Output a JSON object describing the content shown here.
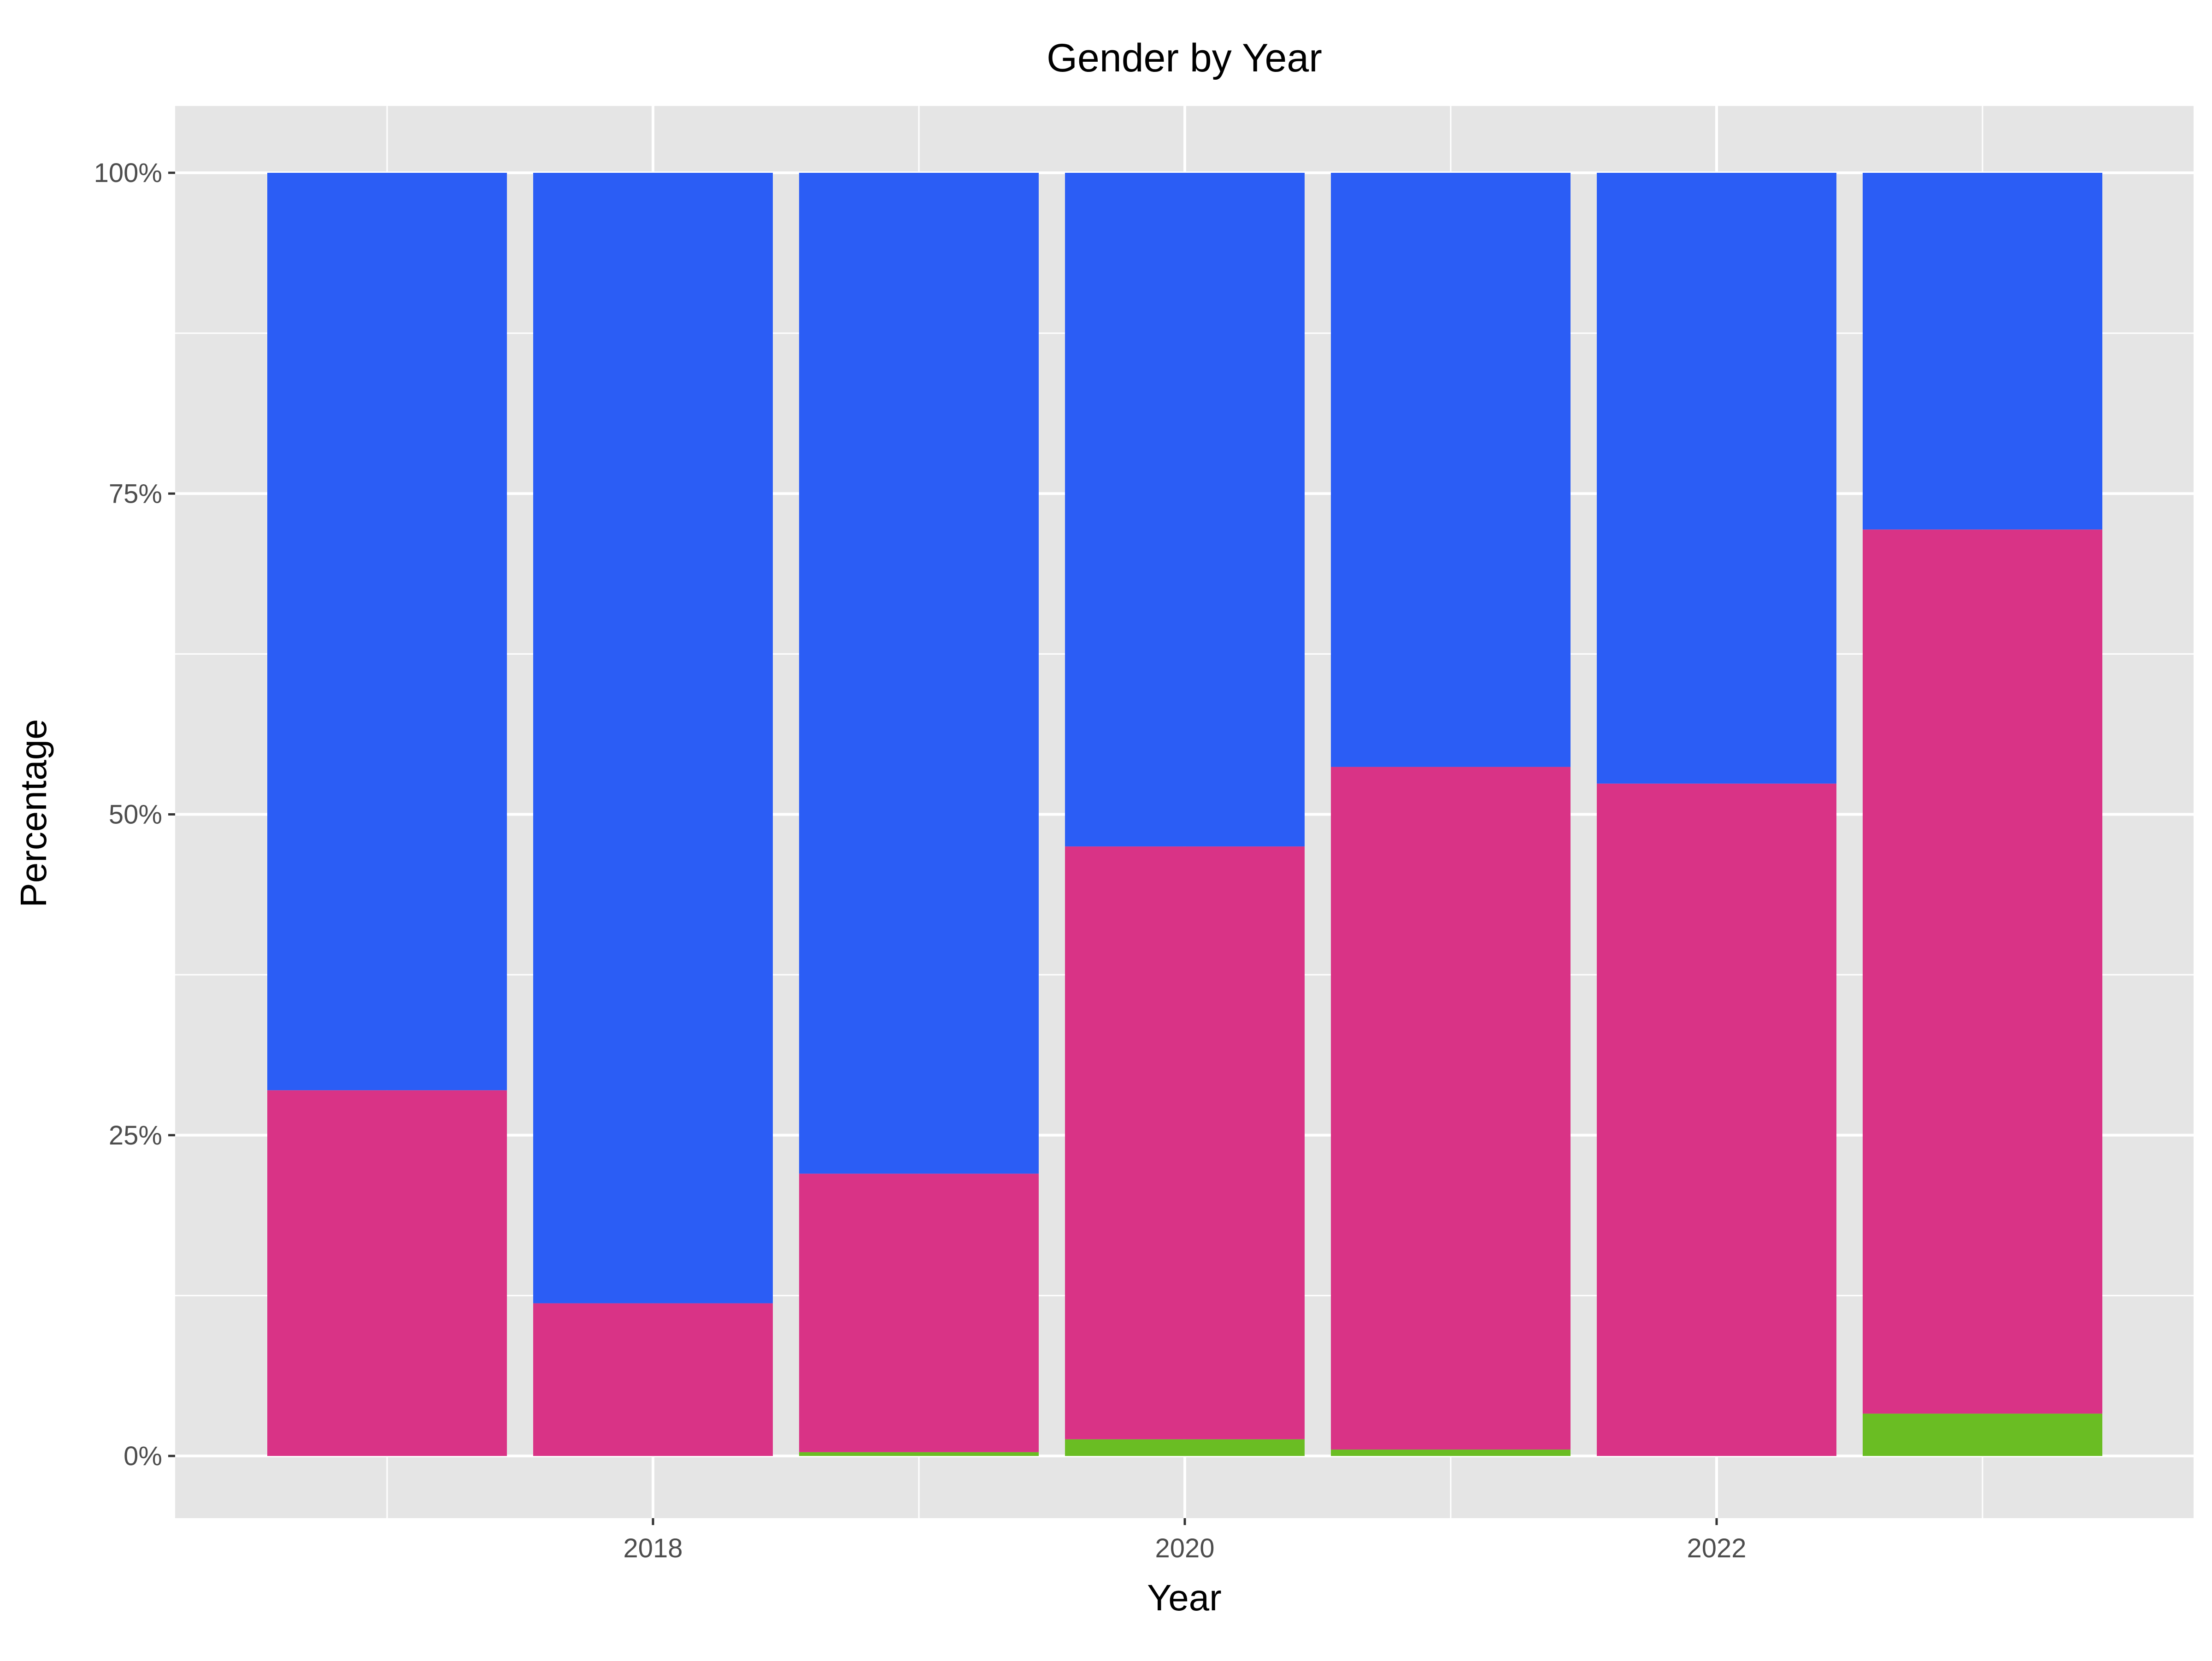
{
  "chart_data": {
    "type": "bar",
    "stacked": true,
    "percent": true,
    "title": "Gender by Year",
    "xlabel": "Year",
    "ylabel": "Percentage",
    "x": [
      2017,
      2018,
      2019,
      2020,
      2021,
      2022,
      2023
    ],
    "x_ticks": [
      "2018",
      "2020",
      "2022"
    ],
    "x_tick_values": [
      2018,
      2020,
      2022
    ],
    "ylim": [
      0,
      100
    ],
    "y_ticks": [
      "0%",
      "25%",
      "50%",
      "75%",
      "100%"
    ],
    "y_tick_values": [
      0,
      25,
      50,
      75,
      100
    ],
    "grid": true,
    "legend": "none",
    "panel_background": "#e5e5e5",
    "grid_color": "#ffffff",
    "series": [
      {
        "color": "#6abd23",
        "values": [
          0,
          0,
          0.3,
          1.3,
          0.5,
          0,
          3.3
        ]
      },
      {
        "color": "#d93386",
        "values": [
          28.5,
          11.9,
          21.7,
          46.2,
          53.2,
          52.4,
          68.9
        ]
      },
      {
        "color": "#2b5df5",
        "values": [
          71.5,
          88.1,
          78.0,
          52.5,
          46.3,
          47.6,
          27.8
        ]
      }
    ]
  }
}
